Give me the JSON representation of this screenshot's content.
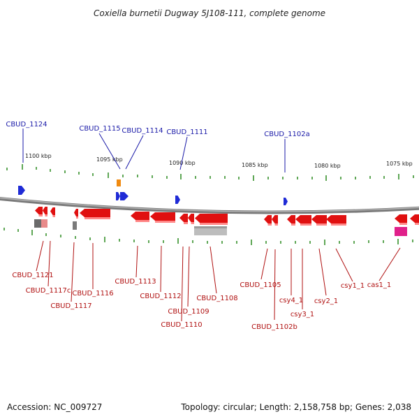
{
  "title": "Coxiella burnetii Dugway 5J108-111, complete genome",
  "kbp_labels": [
    "1100 kbp",
    "1095 kbp",
    "1090 kbp",
    "1085 kbp",
    "1080 kbp",
    "1075 kbp"
  ],
  "upper_strand_genes": [
    "CBUD_1124",
    "CBUD_1115",
    "CBUD_1114",
    "CBUD_1111",
    "CBUD_1102a"
  ],
  "lower_strand_genes": [
    "CBUD_1121",
    "CBUD_1117c",
    "CBUD_1117",
    "CBUD_1116",
    "CBUD_1113",
    "CBUD_1112",
    "CBUD_1110",
    "CBUD_1109",
    "CBUD_1108",
    "CBUD_1105",
    "CBUD_1102b",
    "csy4_1",
    "csy3_1",
    "csy2_1",
    "csy1_1",
    "cas1_1"
  ],
  "footer": {
    "accession": "Accession: NC_009727",
    "summary": "Topology: circular; Length: 2,158,758 bp; Genes: 2,038"
  },
  "colors": {
    "upper_label": "#1a1aa8",
    "lower_label": "#b01010",
    "forward_gene": "#1f2bd6",
    "reverse_gene": "#e01010",
    "tick": "#2a8a1f",
    "backbone": "#808080"
  }
}
